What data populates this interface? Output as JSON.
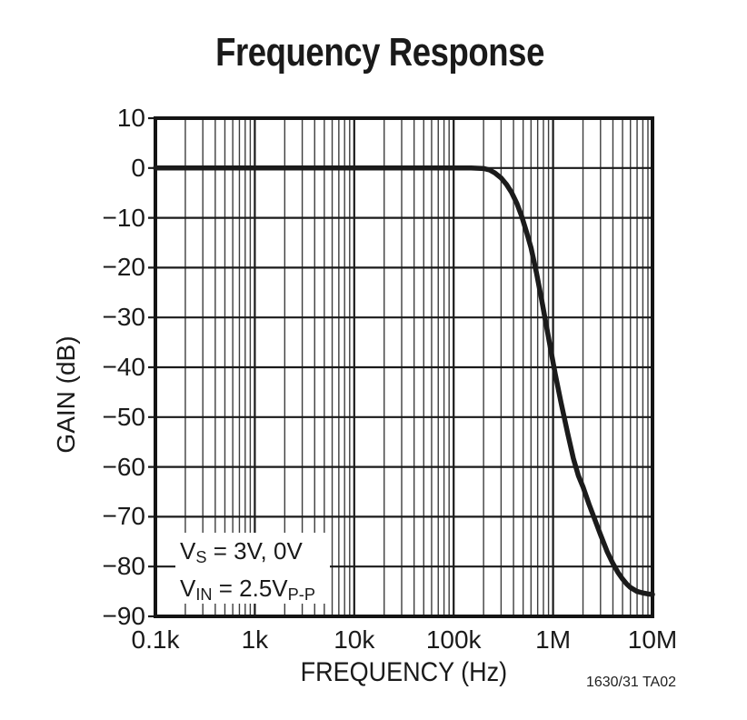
{
  "figure": {
    "footnote": "1630/31 TA02"
  },
  "chart_data": {
    "type": "line",
    "title": "Frequency Response",
    "xlabel": "FREQUENCY (Hz)",
    "ylabel": "GAIN (dB)",
    "x_scale": "log",
    "x_range_hz": [
      100,
      10000000
    ],
    "x_tick_labels": [
      "0.1k",
      "1k",
      "10k",
      "100k",
      "1M",
      "10M"
    ],
    "y_ticks": [
      10,
      0,
      -10,
      -20,
      -30,
      -40,
      -50,
      -60,
      -70,
      -80,
      -90
    ],
    "y_tick_labels": [
      "10",
      "0",
      "−10",
      "−20",
      "−30",
      "−40",
      "−50",
      "−60",
      "−70",
      "−80",
      "−90"
    ],
    "ylim": [
      -90,
      10
    ],
    "grid": {
      "x": "log decades with minor lines 2-9",
      "y": "major line every 10 dB",
      "on": true
    },
    "line_color": "#1b1b1b",
    "grid_minor_color": "#3d3d3d",
    "grid_major_color": "#1a1a1a",
    "annotation": {
      "line1": {
        "base": "V",
        "sub": "S",
        "rest": " = 3V, 0V"
      },
      "line2": {
        "base": "V",
        "sub": "IN",
        "rest": " = 2.5V",
        "sub2": "P-P"
      }
    },
    "series": [
      {
        "name": "gain",
        "points_hz_db": [
          [
            100,
            0
          ],
          [
            1000,
            0
          ],
          [
            10000,
            0
          ],
          [
            100000,
            0
          ],
          [
            150000,
            0
          ],
          [
            200000,
            -0.1
          ],
          [
            230000,
            -0.4
          ],
          [
            260000,
            -1.0
          ],
          [
            300000,
            -2.0
          ],
          [
            340000,
            -3.3
          ],
          [
            380000,
            -4.8
          ],
          [
            430000,
            -7.0
          ],
          [
            480000,
            -9.5
          ],
          [
            540000,
            -12.8
          ],
          [
            600000,
            -16
          ],
          [
            680000,
            -21
          ],
          [
            760000,
            -26
          ],
          [
            850000,
            -31.3
          ],
          [
            950000,
            -36.6
          ],
          [
            1050000,
            -41.3
          ],
          [
            1200000,
            -47
          ],
          [
            1400000,
            -53.2
          ],
          [
            1600000,
            -58.3
          ],
          [
            1800000,
            -61.8
          ],
          [
            2000000,
            -64
          ],
          [
            2300000,
            -67.5
          ],
          [
            2600000,
            -70.3
          ],
          [
            3000000,
            -73.6
          ],
          [
            3500000,
            -77
          ],
          [
            4000000,
            -79.4
          ],
          [
            4500000,
            -81.2
          ],
          [
            5000000,
            -82.5
          ],
          [
            5500000,
            -83.5
          ],
          [
            6000000,
            -84.2
          ],
          [
            7000000,
            -85.0
          ],
          [
            8000000,
            -85.3
          ],
          [
            9000000,
            -85.5
          ],
          [
            10000000,
            -85.6
          ]
        ]
      }
    ]
  }
}
